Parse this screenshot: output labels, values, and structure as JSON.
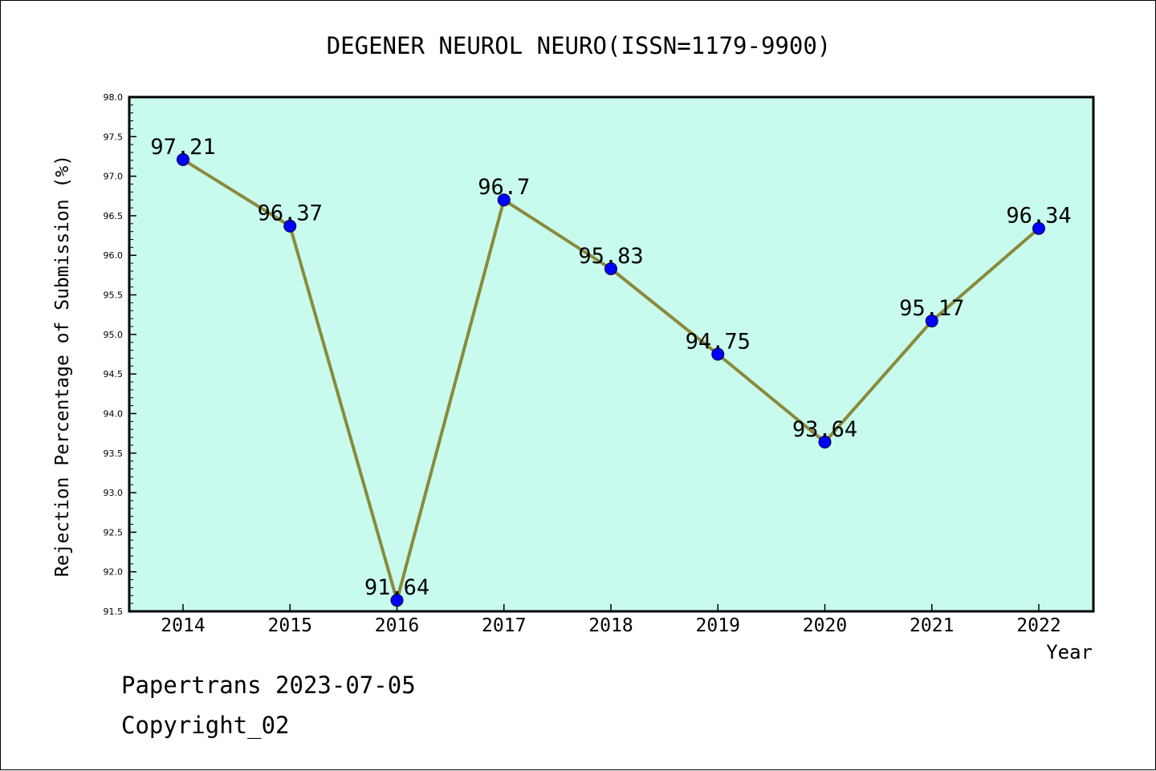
{
  "footer": {
    "line1": "Papertrans 2023-07-05",
    "line2": "Copyright_02"
  },
  "colors": {
    "plot_background": "#c8fbee",
    "line": "#8b8a3b",
    "marker": "#0000ff",
    "axis": "#000000"
  },
  "chart_data": {
    "type": "line",
    "title": "DEGENER NEUROL NEURO(ISSN=1179-9900)",
    "xlabel": "Year",
    "ylabel": "Rejection Percentage of Submission (%)",
    "categories": [
      "2014",
      "2015",
      "2016",
      "2017",
      "2018",
      "2019",
      "2020",
      "2021",
      "2022"
    ],
    "values": [
      97.21,
      96.37,
      91.64,
      96.7,
      95.83,
      94.75,
      93.64,
      95.17,
      96.34
    ],
    "data_labels": [
      "97.21",
      "96.37",
      "91.64",
      "96.7",
      "95.83",
      "94.75",
      "93.64",
      "95.17",
      "96.34"
    ],
    "ylim": [
      91.5,
      98.0
    ],
    "yticks": [
      "91.5",
      "92.0",
      "92.5",
      "93.0",
      "93.5",
      "94.0",
      "94.5",
      "95.0",
      "95.5",
      "96.0",
      "96.5",
      "97.0",
      "97.5",
      "98.0"
    ],
    "grid": false,
    "legend": false
  }
}
